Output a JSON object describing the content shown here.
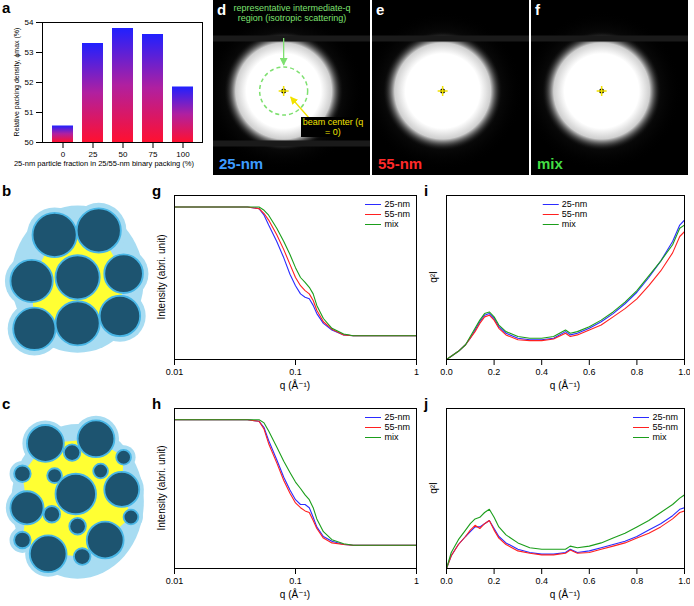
{
  "chart_data": [
    {
      "panel": "a",
      "type": "bar",
      "categories": [
        0,
        25,
        50,
        75,
        100
      ],
      "values": [
        50.55,
        53.3,
        53.8,
        53.6,
        51.85
      ],
      "x_label": "25-nm particle fraction in 25/55-nm binary packing (%)",
      "y_label": "Relative packing density, ϕmax (%)",
      "ylim": [
        50,
        54
      ],
      "yticks": [
        50,
        51,
        52,
        53,
        54
      ]
    },
    {
      "panel": "g",
      "type": "line",
      "x_label": "q (Å⁻¹)",
      "y_label": "Intensity (abri. unit)",
      "log": "x",
      "xlim": [
        0.01,
        1
      ],
      "xticks": [
        0.01,
        0.1,
        1
      ],
      "ylim": [
        0,
        1
      ],
      "tick_labels": "x",
      "legend": "top-right",
      "x": [
        0.01,
        0.02,
        0.03,
        0.04,
        0.05,
        0.055,
        0.06,
        0.07,
        0.08,
        0.09,
        0.1,
        0.11,
        0.12,
        0.13,
        0.14,
        0.15,
        0.17,
        0.2,
        0.25,
        0.3,
        0.4,
        0.5,
        0.7,
        1
      ],
      "series": [
        {
          "name": "25-nm",
          "color": "#2b2bff",
          "values": [
            0.93,
            0.93,
            0.93,
            0.93,
            0.92,
            0.88,
            0.82,
            0.72,
            0.62,
            0.52,
            0.45,
            0.4,
            0.38,
            0.37,
            0.33,
            0.28,
            0.22,
            0.18,
            0.15,
            0.145,
            0.145,
            0.145,
            0.145,
            0.145
          ]
        },
        {
          "name": "55-nm",
          "color": "#ff2020",
          "values": [
            0.93,
            0.93,
            0.93,
            0.93,
            0.92,
            0.89,
            0.85,
            0.76,
            0.67,
            0.58,
            0.5,
            0.45,
            0.42,
            0.4,
            0.36,
            0.3,
            0.23,
            0.185,
            0.15,
            0.145,
            0.145,
            0.145,
            0.145,
            0.145
          ]
        },
        {
          "name": "mix",
          "color": "#1b9e1b",
          "values": [
            0.93,
            0.93,
            0.93,
            0.93,
            0.93,
            0.91,
            0.88,
            0.8,
            0.72,
            0.64,
            0.56,
            0.5,
            0.47,
            0.44,
            0.4,
            0.33,
            0.25,
            0.19,
            0.155,
            0.145,
            0.145,
            0.145,
            0.145,
            0.145
          ]
        }
      ]
    },
    {
      "panel": "h",
      "type": "line",
      "x_label": "q (Å⁻¹)",
      "y_label": "Intensity (abri. unit)",
      "log": "x",
      "xlim": [
        0.01,
        1
      ],
      "xticks": [
        0.01,
        0.1,
        1
      ],
      "ylim": [
        0,
        1
      ],
      "tick_labels": "x",
      "legend": "top-right",
      "x": [
        0.01,
        0.02,
        0.03,
        0.04,
        0.05,
        0.055,
        0.06,
        0.07,
        0.08,
        0.09,
        0.1,
        0.11,
        0.12,
        0.13,
        0.14,
        0.15,
        0.17,
        0.2,
        0.25,
        0.3,
        0.4,
        0.5,
        0.7,
        1
      ],
      "series": [
        {
          "name": "25-nm",
          "color": "#2b2bff",
          "values": [
            0.93,
            0.93,
            0.93,
            0.93,
            0.92,
            0.88,
            0.8,
            0.68,
            0.57,
            0.49,
            0.43,
            0.4,
            0.4,
            0.38,
            0.32,
            0.26,
            0.2,
            0.17,
            0.15,
            0.145,
            0.145,
            0.145,
            0.145,
            0.145
          ]
        },
        {
          "name": "55-nm",
          "color": "#ff2020",
          "values": [
            0.93,
            0.93,
            0.93,
            0.93,
            0.92,
            0.87,
            0.78,
            0.66,
            0.55,
            0.47,
            0.41,
            0.38,
            0.36,
            0.35,
            0.3,
            0.25,
            0.19,
            0.16,
            0.15,
            0.145,
            0.145,
            0.145,
            0.145,
            0.145
          ]
        },
        {
          "name": "mix",
          "color": "#1b9e1b",
          "values": [
            0.93,
            0.93,
            0.93,
            0.93,
            0.93,
            0.91,
            0.86,
            0.76,
            0.67,
            0.6,
            0.54,
            0.5,
            0.46,
            0.43,
            0.38,
            0.31,
            0.23,
            0.18,
            0.155,
            0.145,
            0.145,
            0.145,
            0.145,
            0.145
          ]
        }
      ]
    },
    {
      "panel": "i",
      "type": "line",
      "x_label": "q (Å⁻¹)",
      "y_label": "q²I",
      "xlim": [
        0,
        1
      ],
      "xticks": [
        {
          "value": 0,
          "label": "0.0"
        },
        {
          "value": 0.2,
          "label": "0.2"
        },
        {
          "value": 0.4,
          "label": "0.4"
        },
        {
          "value": 0.6,
          "label": "0.6"
        },
        {
          "value": 0.8,
          "label": "0.8"
        },
        {
          "value": 1,
          "label": "1.0"
        }
      ],
      "ylim": [
        0,
        1
      ],
      "tick_labels": "x",
      "legend": "top-center",
      "x": [
        0,
        0.02,
        0.05,
        0.08,
        0.1,
        0.12,
        0.14,
        0.16,
        0.18,
        0.2,
        0.22,
        0.25,
        0.3,
        0.35,
        0.4,
        0.45,
        0.5,
        0.52,
        0.55,
        0.6,
        0.65,
        0.7,
        0.75,
        0.8,
        0.85,
        0.9,
        0.95,
        0.98,
        1
      ],
      "series": [
        {
          "name": "25-nm",
          "color": "#2b2bff",
          "values": [
            0,
            0.02,
            0.05,
            0.09,
            0.13,
            0.18,
            0.23,
            0.27,
            0.28,
            0.25,
            0.2,
            0.16,
            0.13,
            0.12,
            0.12,
            0.13,
            0.17,
            0.15,
            0.16,
            0.19,
            0.23,
            0.28,
            0.34,
            0.41,
            0.5,
            0.6,
            0.72,
            0.82,
            0.85
          ]
        },
        {
          "name": "55-nm",
          "color": "#ff2020",
          "values": [
            0,
            0.02,
            0.05,
            0.09,
            0.13,
            0.17,
            0.22,
            0.26,
            0.27,
            0.24,
            0.19,
            0.15,
            0.12,
            0.115,
            0.115,
            0.125,
            0.16,
            0.14,
            0.15,
            0.18,
            0.21,
            0.26,
            0.31,
            0.37,
            0.45,
            0.54,
            0.65,
            0.75,
            0.78
          ]
        },
        {
          "name": "mix",
          "color": "#1b9e1b",
          "values": [
            0,
            0.02,
            0.05,
            0.09,
            0.14,
            0.19,
            0.24,
            0.28,
            0.29,
            0.26,
            0.21,
            0.17,
            0.14,
            0.13,
            0.13,
            0.14,
            0.18,
            0.16,
            0.17,
            0.2,
            0.24,
            0.29,
            0.35,
            0.42,
            0.51,
            0.6,
            0.7,
            0.8,
            0.82
          ]
        }
      ]
    },
    {
      "panel": "j",
      "type": "line",
      "x_label": "q (Å⁻¹)",
      "y_label": "q²I",
      "xlim": [
        0,
        1
      ],
      "xticks": [
        {
          "value": 0,
          "label": "0.0"
        },
        {
          "value": 0.2,
          "label": "0.2"
        },
        {
          "value": 0.4,
          "label": "0.4"
        },
        {
          "value": 0.6,
          "label": "0.6"
        },
        {
          "value": 0.8,
          "label": "0.8"
        },
        {
          "value": 1,
          "label": "1.0"
        }
      ],
      "ylim": [
        0,
        1
      ],
      "tick_labels": "x",
      "legend": "top-right",
      "x": [
        0,
        0.02,
        0.05,
        0.08,
        0.1,
        0.12,
        0.14,
        0.16,
        0.18,
        0.2,
        0.22,
        0.25,
        0.3,
        0.35,
        0.4,
        0.45,
        0.5,
        0.52,
        0.55,
        0.6,
        0.65,
        0.7,
        0.75,
        0.8,
        0.85,
        0.9,
        0.95,
        0.98,
        1
      ],
      "series": [
        {
          "name": "25-nm",
          "color": "#2b2bff",
          "values": [
            0,
            0.08,
            0.15,
            0.2,
            0.23,
            0.26,
            0.26,
            0.28,
            0.3,
            0.25,
            0.2,
            0.16,
            0.12,
            0.1,
            0.09,
            0.09,
            0.1,
            0.12,
            0.1,
            0.11,
            0.13,
            0.15,
            0.17,
            0.2,
            0.24,
            0.28,
            0.33,
            0.37,
            0.38
          ]
        },
        {
          "name": "55-nm",
          "color": "#ff2020",
          "values": [
            0,
            0.08,
            0.15,
            0.2,
            0.24,
            0.27,
            0.25,
            0.28,
            0.3,
            0.24,
            0.19,
            0.15,
            0.11,
            0.095,
            0.085,
            0.085,
            0.095,
            0.115,
            0.095,
            0.1,
            0.12,
            0.14,
            0.16,
            0.19,
            0.22,
            0.26,
            0.31,
            0.35,
            0.36
          ]
        },
        {
          "name": "mix",
          "color": "#1b9e1b",
          "values": [
            0,
            0.1,
            0.18,
            0.24,
            0.28,
            0.31,
            0.32,
            0.35,
            0.37,
            0.32,
            0.26,
            0.21,
            0.16,
            0.13,
            0.12,
            0.12,
            0.12,
            0.14,
            0.13,
            0.14,
            0.16,
            0.19,
            0.22,
            0.26,
            0.3,
            0.35,
            0.4,
            0.44,
            0.46
          ]
        }
      ]
    }
  ],
  "images": [
    {
      "panel": "d",
      "label": "25-nm",
      "color": "#3d9bff"
    },
    {
      "panel": "e",
      "label": "55-nm",
      "color": "#ff2a2a"
    },
    {
      "panel": "f",
      "label": "mix",
      "color": "#44dd44"
    }
  ],
  "annotations": [
    {
      "panel": "d",
      "text": "representative intermediate-q region (isotropic scattering)",
      "color": "#7ee070"
    },
    {
      "panel": "d",
      "text": "beam center (q = 0)",
      "color": "#f2e200"
    }
  ],
  "diagrams": [
    {
      "panel": "b"
    },
    {
      "panel": "c"
    }
  ]
}
